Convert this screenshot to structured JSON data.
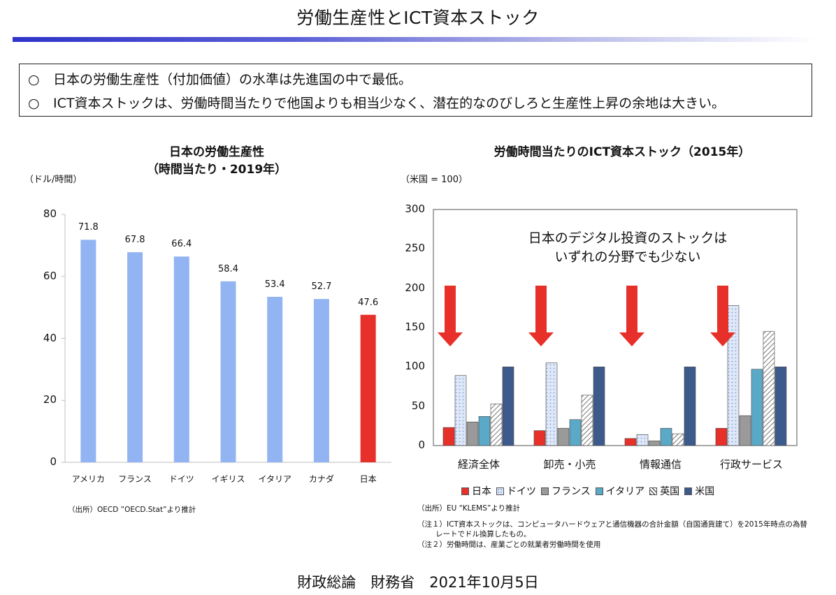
{
  "page": {
    "title": "労働生産性とICT資本ストック",
    "summary": [
      {
        "mark": "○",
        "text": "日本の労働生産性（付加価値）の水準は先進国の中で最低。"
      },
      {
        "mark": "○",
        "text": "ICT資本ストックは、労働時間当たりで他国よりも相当少なく、潜在的なのびしろと生産性上昇の余地は大きい。"
      }
    ],
    "footer": "財政総論　財務省　2021年10月5日",
    "colors": {
      "title_bar": "#2f33c8",
      "bar_blue": "#93b4f2",
      "bar_red": "#e8302a"
    }
  },
  "chart_data": [
    {
      "type": "bar",
      "title_line1": "日本の労働生産性",
      "title_line2": "（時間当たり・2019年）",
      "ylabel": "（ドル/時間）",
      "categories": [
        "アメリカ",
        "フランス",
        "ドイツ",
        "イギリス",
        "イタリア",
        "カナダ",
        "日本"
      ],
      "values": [
        71.8,
        67.8,
        66.4,
        58.4,
        53.4,
        52.7,
        47.6
      ],
      "value_labels": [
        "71.8",
        "67.8",
        "66.4",
        "58.4",
        "53.4",
        "52.7",
        "47.6"
      ],
      "ylim": [
        0,
        80
      ],
      "yticks": [
        "0",
        "20",
        "40",
        "60",
        "80"
      ],
      "grid": false,
      "highlight": "日本",
      "source": "（出所）OECD ”OECD.Stat”より推計"
    },
    {
      "type": "bar",
      "title": "労働時間当たりのICT資本ストック（2015年）",
      "ylabel": "（米国 = 100）",
      "categories": [
        "経済全体",
        "卸売・小売",
        "情報通信",
        "行政サービス"
      ],
      "series": [
        {
          "name": "日本",
          "values": [
            23,
            19,
            9,
            22
          ],
          "color": "#e8302a",
          "pattern": "solid"
        },
        {
          "name": "ドイツ",
          "values": [
            89,
            105,
            14,
            178
          ],
          "color": "#c9d8f2",
          "pattern": "dots"
        },
        {
          "name": "フランス",
          "values": [
            30,
            22,
            6,
            38
          ],
          "color": "#9a9a9a",
          "pattern": "solid"
        },
        {
          "name": "イタリア",
          "values": [
            37,
            33,
            22,
            97
          ],
          "color": "#5aa9c7",
          "pattern": "solid"
        },
        {
          "name": "英国",
          "values": [
            53,
            64,
            15,
            145
          ],
          "color": "#d9d9d9",
          "pattern": "hatch"
        },
        {
          "name": "米国",
          "values": [
            100,
            100,
            100,
            100
          ],
          "color": "#3d5a8c",
          "pattern": "solid"
        }
      ],
      "ylim": [
        0,
        300
      ],
      "yticks": [
        "0",
        "50",
        "100",
        "150",
        "200",
        "250",
        "300"
      ],
      "grid": false,
      "legend_position": "bottom",
      "annotation_line1": "日本のデジタル投資のストックは",
      "annotation_line2": "いずれの分野でも少ない",
      "source": "（出所）EU “KLEMS”より推計",
      "note1_line1": "（注１）ICT資本ストックは、コンピュータハードウェアと通信機器の合計金額（自国通貨建て）を2015年時点の為替",
      "note1_line2": "レートでドル換算したもの。",
      "note2": "（注２）労働時間は、産業ごとの就業者労働時間を使用"
    }
  ]
}
